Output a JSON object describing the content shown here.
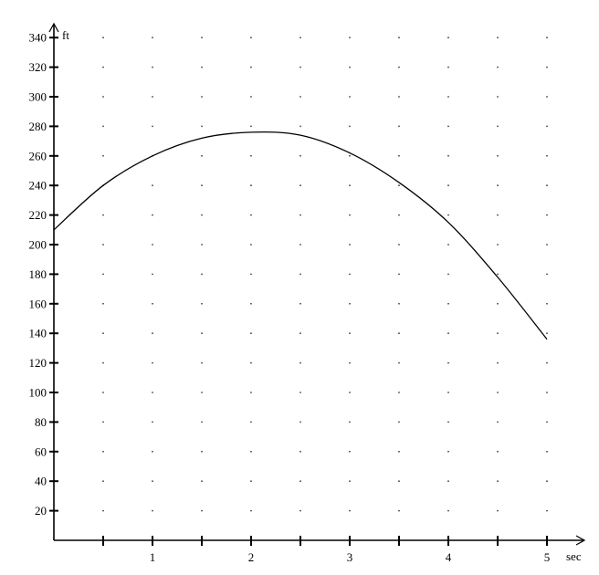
{
  "chart_data": {
    "type": "line",
    "title": "",
    "xlabel": "sec",
    "ylabel": "ft",
    "xlim": [
      0,
      5.3
    ],
    "ylim": [
      0,
      340
    ],
    "x_ticks": [
      1,
      2,
      3,
      4,
      5
    ],
    "x_minor_ticks": [
      0.5,
      1.5,
      2.5,
      3.5,
      4.5
    ],
    "y_ticks": [
      20,
      40,
      60,
      80,
      100,
      120,
      140,
      160,
      180,
      200,
      220,
      240,
      260,
      280,
      300,
      320,
      340
    ],
    "grid": "dotted",
    "series": [
      {
        "x": [
          0,
          0.5,
          1,
          1.5,
          2,
          2.5,
          3,
          3.5,
          4,
          4.5,
          5
        ],
        "y": [
          210,
          240,
          260,
          272,
          276,
          274,
          262,
          242,
          215,
          178,
          136
        ]
      }
    ]
  }
}
